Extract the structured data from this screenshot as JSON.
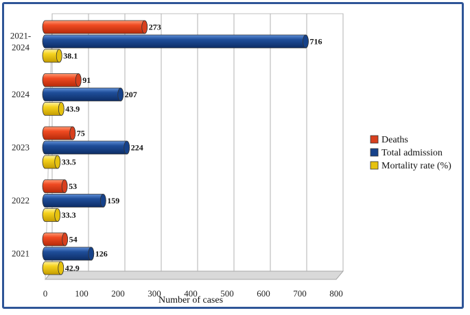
{
  "chart_data": {
    "type": "bar",
    "orientation": "horizontal",
    "style": "3d-cylinder",
    "categories": [
      "2021-2024",
      "2024",
      "2023",
      "2022",
      "2021"
    ],
    "series": [
      {
        "name": "Deaths",
        "color": "#e8401c",
        "values": [
          273,
          91,
          75,
          53,
          54
        ]
      },
      {
        "name": "Total admission",
        "color": "#1f4e9a",
        "values": [
          716,
          207,
          224,
          159,
          126
        ]
      },
      {
        "name": "Mortality rate (%)",
        "color": "#f5d21e",
        "values": [
          38.1,
          43.9,
          33.5,
          33.3,
          42.9
        ]
      }
    ],
    "xlabel": "Number of cases",
    "ylabel": "",
    "xlim": [
      0,
      800
    ],
    "xticks": [
      0,
      100,
      200,
      300,
      400,
      500,
      600,
      700,
      800
    ],
    "grid": true,
    "legend_position": "right"
  }
}
